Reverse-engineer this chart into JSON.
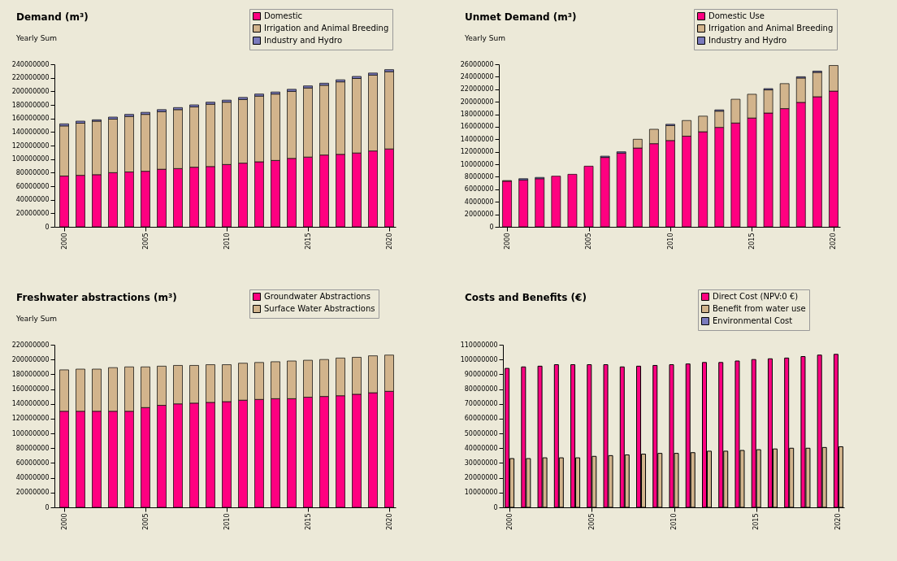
{
  "chart_data": [
    {
      "type": "bar",
      "stacked": true,
      "title": "Demand (m³)",
      "subtitle": "Yearly Sum",
      "legend": "top right",
      "grid": false,
      "x": [
        2000,
        2001,
        2002,
        2003,
        2004,
        2005,
        2006,
        2007,
        2008,
        2009,
        2010,
        2011,
        2012,
        2013,
        2014,
        2015,
        2016,
        2017,
        2018,
        2019,
        2020
      ],
      "xlim": [
        1999.4,
        2020.4
      ],
      "xticks": [
        2000,
        2005,
        2010,
        2015,
        2020
      ],
      "ylim": [
        0,
        240000000
      ],
      "yticks": [
        0,
        20000000,
        40000000,
        60000000,
        80000000,
        100000000,
        120000000,
        140000000,
        160000000,
        180000000,
        200000000,
        220000000,
        240000000
      ],
      "series": [
        {
          "name": "Domestic",
          "color": "#ff0080",
          "values": [
            75000000,
            76000000,
            77000000,
            80000000,
            81000000,
            82000000,
            85000000,
            86000000,
            88000000,
            89000000,
            92000000,
            94000000,
            96000000,
            98000000,
            101000000,
            103000000,
            106000000,
            107000000,
            109000000,
            112000000,
            115000000
          ]
        },
        {
          "name": "Irrigation and Animal Breeding",
          "color": "#d2b48c",
          "values": [
            74000000,
            77000000,
            79000000,
            79000000,
            82000000,
            84000000,
            85000000,
            87000000,
            89000000,
            92000000,
            92000000,
            94000000,
            97000000,
            98000000,
            99000000,
            102000000,
            103000000,
            107000000,
            110000000,
            112000000,
            114000000
          ]
        },
        {
          "name": "Industry and Hydro",
          "color": "#7b7bbd",
          "values": [
            3000000,
            3000000,
            2000000,
            3000000,
            3000000,
            3000000,
            3000000,
            3000000,
            3000000,
            3000000,
            3000000,
            3000000,
            3000000,
            3000000,
            3000000,
            3000000,
            3000000,
            3000000,
            3000000,
            3000000,
            3000000
          ]
        }
      ]
    },
    {
      "type": "bar",
      "stacked": true,
      "title": "Unmet Demand (m³)",
      "subtitle": "Yearly Sum",
      "legend": "top right",
      "grid": false,
      "x": [
        2000,
        2001,
        2002,
        2003,
        2004,
        2005,
        2006,
        2007,
        2008,
        2009,
        2010,
        2011,
        2012,
        2013,
        2014,
        2015,
        2016,
        2017,
        2018,
        2019,
        2020
      ],
      "xlim": [
        1999.5,
        2020.4
      ],
      "xticks": [
        2000,
        2005,
        2010,
        2015,
        2020
      ],
      "ylim": [
        0,
        26000000
      ],
      "yticks": [
        0,
        2000000,
        4000000,
        6000000,
        8000000,
        10000000,
        12000000,
        14000000,
        16000000,
        18000000,
        20000000,
        22000000,
        24000000,
        26000000
      ],
      "series": [
        {
          "name": "Domestic Use",
          "color": "#ff0080",
          "values": [
            7300000,
            7500000,
            7700000,
            8100000,
            8400000,
            9700000,
            11100000,
            11800000,
            12600000,
            13300000,
            13800000,
            14500000,
            15200000,
            15900000,
            16600000,
            17400000,
            18200000,
            18900000,
            19900000,
            20800000,
            21700000
          ]
        },
        {
          "name": "Irrigation and Animal Breeding",
          "color": "#d2b48c",
          "values": [
            100000,
            null,
            null,
            null,
            null,
            null,
            null,
            null,
            1400000,
            2300000,
            2400000,
            2500000,
            2500000,
            2600000,
            3800000,
            3800000,
            3700000,
            4000000,
            3900000,
            3900000,
            4100000
          ]
        },
        {
          "name": "Industry and Hydro",
          "color": "#7b7bbd",
          "values": [
            null,
            200000,
            200000,
            null,
            null,
            null,
            200000,
            200000,
            null,
            null,
            200000,
            null,
            null,
            200000,
            null,
            null,
            200000,
            null,
            200000,
            200000,
            null
          ]
        }
      ]
    },
    {
      "type": "bar",
      "stacked": true,
      "title": "Freshwater abstractions (m³)",
      "subtitle": "Yearly Sum",
      "legend": "top right",
      "grid": false,
      "x": [
        2000,
        2001,
        2002,
        2003,
        2004,
        2005,
        2006,
        2007,
        2008,
        2009,
        2010,
        2011,
        2012,
        2013,
        2014,
        2015,
        2016,
        2017,
        2018,
        2019,
        2020
      ],
      "xlim": [
        1999.4,
        2020.4
      ],
      "xticks": [
        2000,
        2005,
        2010,
        2015,
        2020
      ],
      "ylim": [
        0,
        220000000
      ],
      "yticks": [
        0,
        20000000,
        40000000,
        60000000,
        80000000,
        100000000,
        120000000,
        140000000,
        160000000,
        180000000,
        200000000,
        220000000
      ],
      "series": [
        {
          "name": "Groundwater Abstractions",
          "color": "#ff0080",
          "values": [
            130000000,
            130000000,
            130000000,
            130000000,
            130000000,
            135000000,
            138000000,
            140000000,
            141000000,
            142000000,
            143000000,
            145000000,
            146000000,
            147000000,
            147000000,
            149000000,
            150000000,
            151000000,
            153000000,
            155000000,
            157000000
          ]
        },
        {
          "name": "Surface Water Abstractions",
          "color": "#d2b48c",
          "values": [
            56000000,
            57000000,
            57000000,
            59000000,
            60000000,
            55000000,
            53000000,
            52000000,
            51000000,
            51000000,
            50000000,
            50000000,
            50000000,
            50000000,
            51000000,
            50000000,
            50000000,
            51000000,
            50000000,
            50000000,
            49000000
          ]
        }
      ]
    },
    {
      "type": "bar",
      "title": "Costs and Benefits (€)",
      "legend": "top right",
      "grid": false,
      "x": [
        2000,
        2001,
        2002,
        2003,
        2004,
        2005,
        2006,
        2007,
        2008,
        2009,
        2010,
        2011,
        2012,
        2013,
        2014,
        2015,
        2016,
        2017,
        2018,
        2019,
        2020
      ],
      "xlim": [
        1999.6,
        2020.35
      ],
      "xticks": [
        2000,
        2005,
        2010,
        2015,
        2020
      ],
      "ylim": [
        0,
        110000000
      ],
      "yticks": [
        0,
        10000000,
        20000000,
        30000000,
        40000000,
        50000000,
        60000000,
        70000000,
        80000000,
        90000000,
        100000000,
        110000000
      ],
      "series": [
        {
          "name": "Direct Cost (NPV:0 €)",
          "color": "#ff0080",
          "values": [
            94000000,
            95000000,
            95500000,
            96500000,
            96500000,
            96500000,
            96500000,
            95000000,
            95500000,
            96000000,
            96500000,
            97000000,
            98000000,
            98000000,
            99000000,
            100000000,
            100500000,
            101000000,
            102000000,
            103000000,
            103500000
          ]
        },
        {
          "name": "Benefit from water use",
          "color": "#d2b48c",
          "values": [
            33000000,
            33000000,
            33500000,
            33500000,
            33500000,
            34500000,
            35000000,
            35500000,
            36000000,
            36500000,
            36500000,
            37000000,
            38000000,
            38000000,
            38500000,
            39000000,
            39500000,
            40000000,
            40000000,
            40500000,
            41000000
          ]
        },
        {
          "name": "Environmental Cost",
          "color": "#7b7bbd",
          "values": [
            null,
            null,
            null,
            null,
            null,
            null,
            null,
            null,
            null,
            null,
            null,
            null,
            null,
            null,
            null,
            null,
            null,
            null,
            null,
            null,
            null
          ]
        }
      ]
    }
  ]
}
